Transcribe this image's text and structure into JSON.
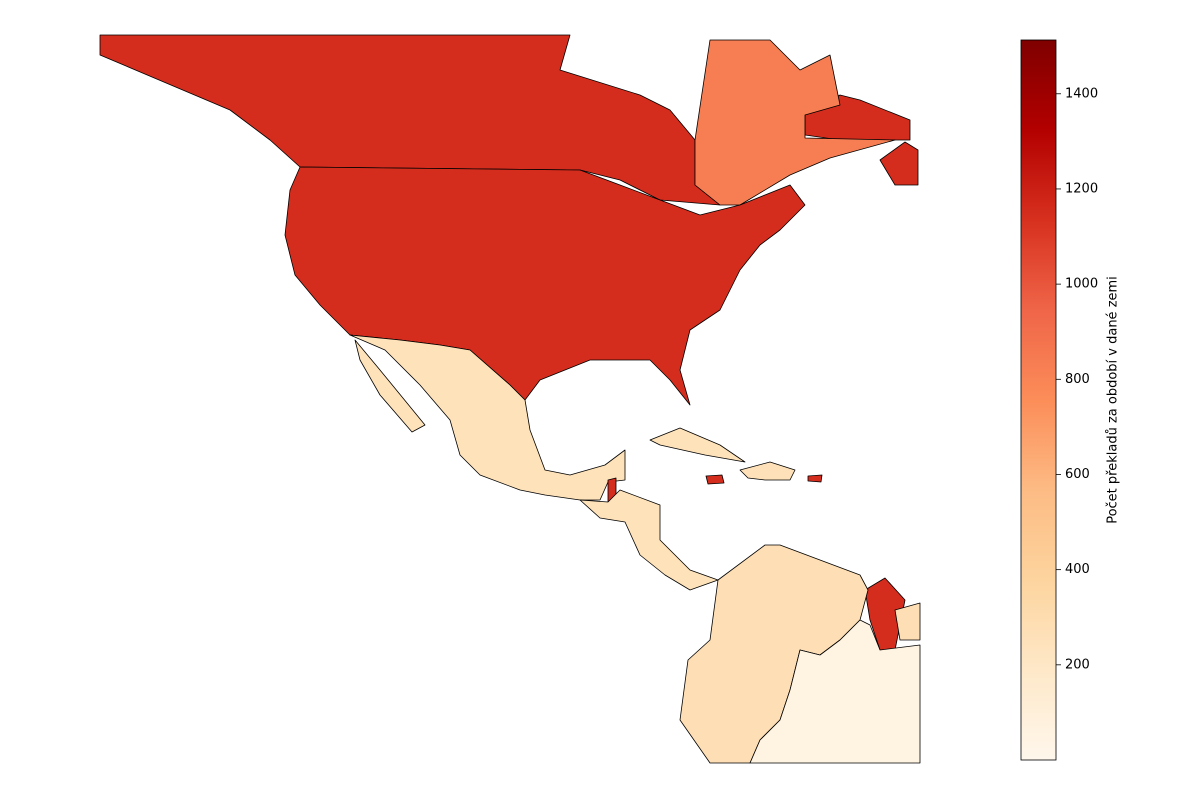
{
  "chart_data": {
    "type": "choropleth",
    "values": [
      1150,
      830,
      1150,
      250,
      1150,
      250,
      250,
      1150,
      1150,
      260,
      1150,
      280,
      50
    ],
    "colormap": "OrRd",
    "colorbar": {
      "label": "Počet překladů za období v dané zemi",
      "lim": [
        0,
        1513
      ],
      "ticks": [
        200,
        400,
        600,
        800,
        1000,
        1200,
        1400
      ]
    }
  }
}
